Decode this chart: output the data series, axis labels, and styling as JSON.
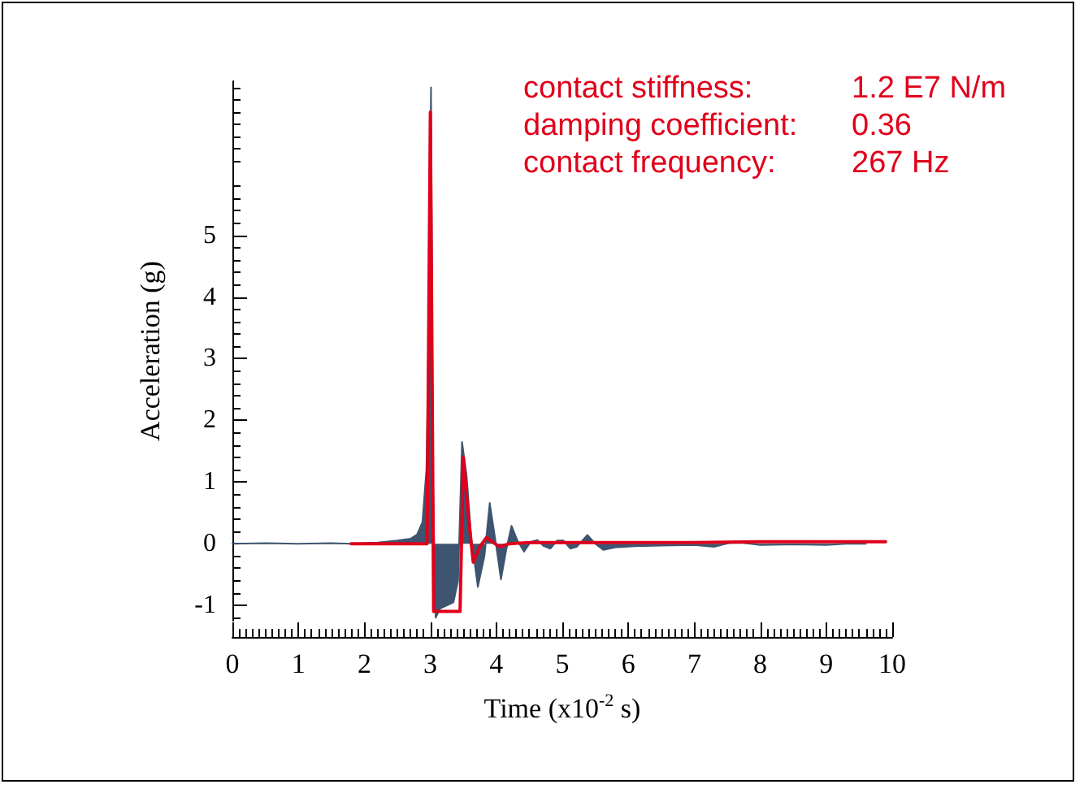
{
  "chart_data": {
    "type": "line",
    "xlabel": "Time (x10$^{-2}$ s)",
    "ylabel": "Acceleration (g)",
    "xlim": [
      0,
      10
    ],
    "xticks": [
      0,
      1,
      2,
      3,
      4,
      5,
      6,
      7,
      8,
      9,
      10
    ],
    "ylim": [
      -1.25,
      7.5
    ],
    "yticks": [
      -1,
      0,
      1,
      2,
      3,
      4,
      5
    ],
    "marker": "none",
    "line_style": "solid",
    "annotations": [
      "contact stiffness:\t1.2 E7 N/m",
      "damping coefficient:\t0.36",
      "contact frequency:\t267 Hz"
    ],
    "series": [
      {
        "type": "area",
        "color": "#3d5570",
        "x": [
          0,
          0.5,
          1,
          1.5,
          1.8,
          2.2,
          2.5,
          2.7,
          2.8,
          2.88,
          2.94,
          2.97,
          3.01,
          3.04,
          3.08,
          3.15,
          3.25,
          3.35,
          3.42,
          3.48,
          3.55,
          3.62,
          3.72,
          3.82,
          3.9,
          3.98,
          4.07,
          4.15,
          4.23,
          4.32,
          4.42,
          4.52,
          4.62,
          4.72,
          4.82,
          4.92,
          5.02,
          5.12,
          5.22,
          5.38,
          5.5,
          5.62,
          5.8,
          6.1,
          6.5,
          7,
          7.3,
          7.6,
          8,
          8.5,
          9,
          9.3,
          9.6
        ],
        "values": [
          0,
          0.01,
          0,
          0.01,
          0,
          0.02,
          0.05,
          0.08,
          0.15,
          0.35,
          1.2,
          3,
          7.4,
          1,
          -1.2,
          -1.05,
          -1,
          -0.95,
          -0.6,
          1.65,
          1.1,
          0.1,
          -0.7,
          -0.2,
          0.66,
          0.1,
          -0.58,
          -0.1,
          0.29,
          0.05,
          -0.13,
          0.03,
          0.06,
          -0.04,
          -0.08,
          0.05,
          0.05,
          -0.08,
          -0.05,
          0.14,
          0,
          -0.1,
          -0.06,
          -0.04,
          -0.03,
          -0.02,
          -0.05,
          0.03,
          -0.02,
          -0.01,
          -0.02,
          0,
          0
        ]
      },
      {
        "color": "#e0001b",
        "x": [
          1.8,
          2.95,
          3.0,
          3.05,
          3.45,
          3.5,
          3.58,
          3.65,
          3.75,
          3.85,
          3.95,
          4.05,
          4.2,
          4.5,
          5,
          6,
          7,
          8,
          9,
          9.9
        ],
        "values": [
          0,
          0,
          7.0,
          -1.1,
          -1.1,
          1.4,
          0.4,
          -0.3,
          -0.05,
          0.1,
          0.02,
          -0.05,
          0,
          0.02,
          0.02,
          0.02,
          0.02,
          0.03,
          0.03,
          0.03
        ]
      }
    ]
  }
}
